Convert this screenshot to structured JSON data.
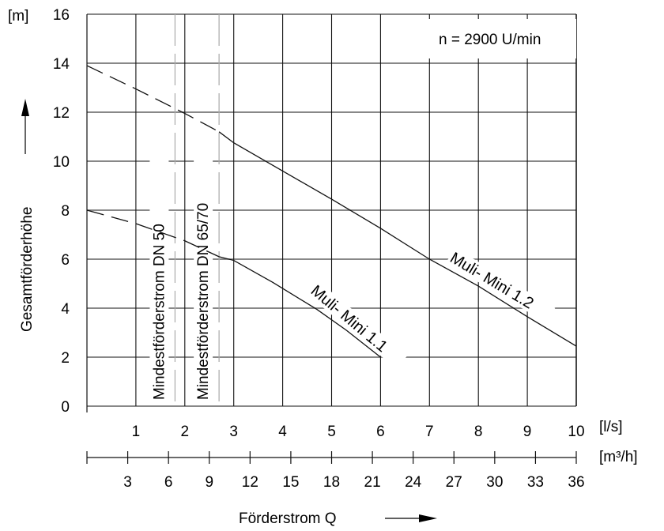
{
  "chart_data": {
    "type": "line",
    "annotation": "n = 2900 U/min",
    "ylabel": "Gesamtförderhöhe",
    "yunit": "[m]",
    "xlabel": "Förderstrom  Q",
    "xunit": "[l/s]",
    "x2unit": "[m³/h]",
    "xlim": [
      0,
      10
    ],
    "ylim": [
      0,
      16
    ],
    "x2lim": [
      0,
      36
    ],
    "grid": true,
    "xticks": [
      "1",
      "2",
      "3",
      "4",
      "5",
      "6",
      "7",
      "8",
      "9",
      "10"
    ],
    "yticks": [
      "0",
      "2",
      "4",
      "6",
      "8",
      "10",
      "12",
      "14",
      "16"
    ],
    "x2ticks": [
      "3",
      "6",
      "9",
      "12",
      "15",
      "18",
      "21",
      "24",
      "27",
      "30",
      "33",
      "36"
    ],
    "series": [
      {
        "name": "Muli- Mini 1.2",
        "dashed_until_x": 2.7,
        "x": [
          0,
          1,
          2,
          2.7,
          3,
          4,
          5,
          6,
          7,
          8,
          9,
          10
        ],
        "y": [
          13.9,
          12.95,
          11.95,
          11.2,
          10.75,
          9.6,
          8.45,
          7.26,
          6.0,
          4.9,
          3.65,
          2.45
        ]
      },
      {
        "name": "Muli- Mini 1.1",
        "dashed_until_x": 2.7,
        "x": [
          0,
          1,
          2,
          2.7,
          3,
          3.8,
          4.7,
          5.3,
          6
        ],
        "y": [
          8.0,
          7.45,
          6.75,
          6.1,
          5.95,
          5.05,
          3.95,
          3.1,
          2.0
        ]
      }
    ],
    "reference_lines": [
      {
        "label": "Mindestförderstrom DN 50",
        "x": 1.8
      },
      {
        "label": "Mindestförderstrom DN 65/70",
        "x": 2.7
      }
    ]
  }
}
